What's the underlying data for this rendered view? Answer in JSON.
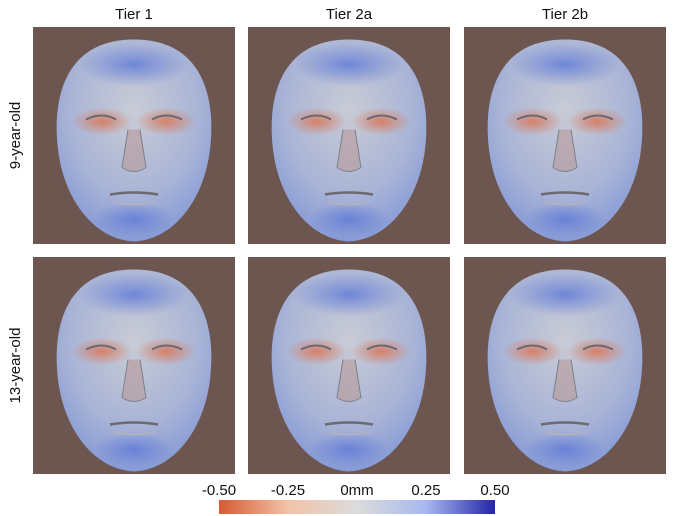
{
  "columns": [
    "Tier 1",
    "Tier 2a",
    "Tier 2b"
  ],
  "rows": [
    "9-year-old",
    "13-year-old"
  ],
  "colorbar": {
    "lim": [
      -0.5,
      0.5
    ],
    "ticks": [
      {
        "value": -0.5,
        "label": "-0.50"
      },
      {
        "value": -0.25,
        "label": "-0.25"
      },
      {
        "value": 0,
        "label": "0mm"
      },
      {
        "value": 0.25,
        "label": "0.25"
      },
      {
        "value": 0.5,
        "label": "0.50"
      }
    ],
    "colors": [
      "#d65a34",
      "#f2c2a8",
      "#dcdcdc",
      "#a7b8ef",
      "#2424a8"
    ]
  }
}
